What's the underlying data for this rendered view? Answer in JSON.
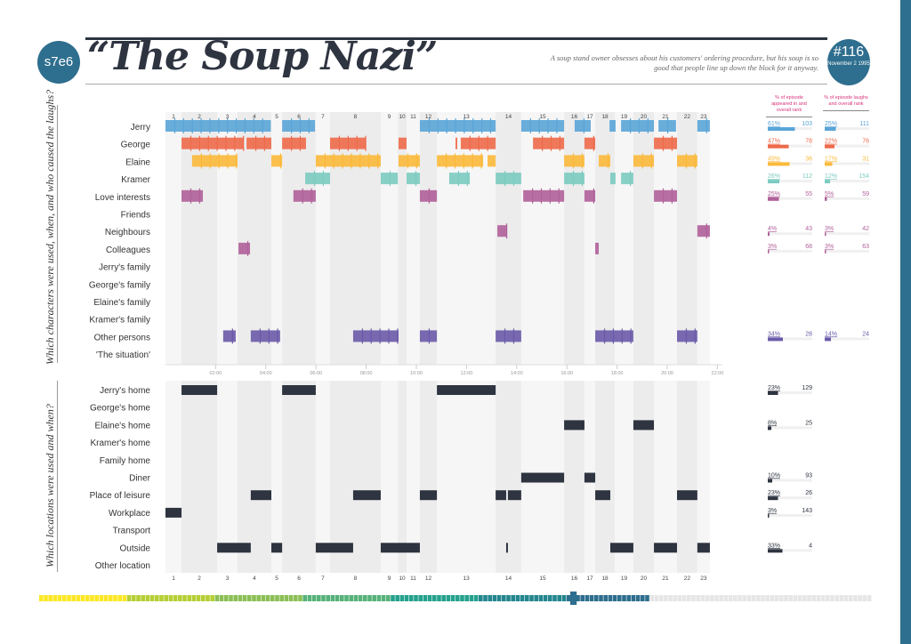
{
  "header": {
    "episode_code": "s7e6",
    "title": "“The Soup Nazi”",
    "description": "A soup stand owner obsesses about his customers' ordering procedure, but his soup is so good that people line up down the block for it anyway.",
    "episode_number": "#116",
    "air_date": "November 2 1995"
  },
  "labels": {
    "characters_question": "Which characters were used, when, and who caused the laughs?",
    "locations_question": "Which locations were used and when?",
    "col_appeared": "% of episode appeared in and overall rank",
    "col_laughs": "% of episode laughs and overall rank"
  },
  "colors": {
    "accent": "#2e6e8e",
    "Jerry": "#5aa5d8",
    "George": "#ee6a4a",
    "Elaine": "#fbb93a",
    "Kramer": "#7ccbc1",
    "secondary": "#b0609a",
    "other": "#6a5aa8",
    "location": "#2e3440",
    "stat_header": "#d6337a"
  },
  "chart_data": [
    {
      "type": "timeline",
      "xlabel": "",
      "unit": "minutes",
      "xlim": [
        0,
        22
      ],
      "time_ticks": [
        "02:00",
        "04:00",
        "06:00",
        "08:00",
        "10:00",
        "12:00",
        "14:00",
        "16:00",
        "18:00",
        "20:00",
        "22:00"
      ],
      "scenes": {
        "labels": [
          "1",
          "2",
          "3",
          "4",
          "5",
          "6",
          "7",
          "8",
          "9",
          "10",
          "11",
          "12",
          "13",
          "14",
          "15",
          "16",
          "17",
          "18",
          "19",
          "20",
          "21",
          "22",
          "23"
        ],
        "starts": [
          0,
          0.64,
          2.06,
          2.87,
          4.22,
          4.65,
          5.99,
          6.56,
          8.58,
          9.26,
          9.61,
          10.14,
          10.82,
          13.16,
          14.18,
          15.89,
          16.7,
          17.13,
          17.91,
          18.65,
          19.47,
          20.39,
          21.2
        ],
        "end": 21.7
      },
      "rows": [
        {
          "name": "Jerry",
          "color": "#5aa5d8",
          "segments": [
            [
              0,
              4.2
            ],
            [
              4.65,
              5.96
            ],
            [
              10.14,
              13.16
            ],
            [
              14.18,
              15.89
            ],
            [
              16.31,
              16.95
            ],
            [
              17.7,
              17.94
            ],
            [
              18.16,
              19.47
            ],
            [
              19.65,
              20.35
            ],
            [
              21.2,
              21.7
            ]
          ],
          "appeared": {
            "pct": "61%",
            "value": 61,
            "rank": "103"
          },
          "laughs": {
            "pct": "25%",
            "value": 25,
            "rank": "111"
          }
        },
        {
          "name": "George",
          "color": "#ee6a4a",
          "segments": [
            [
              0.64,
              3.12
            ],
            [
              3.23,
              4.22
            ],
            [
              4.65,
              5.6
            ],
            [
              6.56,
              7.98
            ],
            [
              9.29,
              9.61
            ],
            [
              11.56,
              11.63
            ],
            [
              11.77,
              13.16
            ],
            [
              14.65,
              15.89
            ],
            [
              16.7,
              17.13
            ],
            [
              19.47,
              20.39
            ]
          ],
          "appeared": {
            "pct": "47%",
            "value": 47,
            "rank": "78"
          },
          "laughs": {
            "pct": "22%",
            "value": 22,
            "rank": "76"
          }
        },
        {
          "name": "Elaine",
          "color": "#fbb93a",
          "segments": [
            [
              1.06,
              2.87
            ],
            [
              4.22,
              4.65
            ],
            [
              5.99,
              8.58
            ],
            [
              9.29,
              10.14
            ],
            [
              10.82,
              12.66
            ],
            [
              12.84,
              13.16
            ],
            [
              15.89,
              16.7
            ],
            [
              17.27,
              17.73
            ],
            [
              18.65,
              19.47
            ],
            [
              20.39,
              21.2
            ]
          ],
          "appeared": {
            "pct": "49%",
            "value": 49,
            "rank": "36"
          },
          "laughs": {
            "pct": "17%",
            "value": 17,
            "rank": "31"
          }
        },
        {
          "name": "Kramer",
          "color": "#7ccbc1",
          "segments": [
            [
              5.57,
              6.56
            ],
            [
              8.58,
              9.26
            ],
            [
              9.61,
              10.14
            ],
            [
              11.31,
              12.13
            ],
            [
              13.16,
              14.18
            ],
            [
              15.89,
              16.7
            ],
            [
              17.73,
              17.94
            ],
            [
              18.16,
              18.65
            ]
          ],
          "appeared": {
            "pct": "26%",
            "value": 26,
            "rank": "112"
          },
          "laughs": {
            "pct": "12%",
            "value": 12,
            "rank": "154"
          }
        },
        {
          "name": "Love interests",
          "color": "#b0609a",
          "segments": [
            [
              0.64,
              1.49
            ],
            [
              5.1,
              5.99
            ],
            [
              10.14,
              10.82
            ],
            [
              14.26,
              15.89
            ],
            [
              16.7,
              17.13
            ],
            [
              19.47,
              20.39
            ]
          ],
          "appeared": {
            "pct": "25%",
            "value": 25,
            "rank": "55"
          },
          "laughs": {
            "pct": "5%",
            "value": 5,
            "rank": "59"
          }
        },
        {
          "name": "Friends",
          "color": "#b0609a",
          "segments": []
        },
        {
          "name": "Neighbours",
          "color": "#b0609a",
          "segments": [
            [
              13.23,
              13.62
            ],
            [
              21.2,
              21.7
            ]
          ],
          "appeared": {
            "pct": "4%",
            "value": 4,
            "rank": "43"
          },
          "laughs": {
            "pct": "3%",
            "value": 3,
            "rank": "42"
          }
        },
        {
          "name": "Colleagues",
          "color": "#b0609a",
          "segments": [
            [
              2.91,
              3.37
            ],
            [
              17.13,
              17.27
            ]
          ],
          "appeared": {
            "pct": "3%",
            "value": 3,
            "rank": "68"
          },
          "laughs": {
            "pct": "3%",
            "value": 3,
            "rank": "63"
          }
        },
        {
          "name": "Jerry's family",
          "color": "#b0609a",
          "segments": []
        },
        {
          "name": "George's family",
          "color": "#b0609a",
          "segments": []
        },
        {
          "name": "Elaine's family",
          "color": "#b0609a",
          "segments": []
        },
        {
          "name": "Kramer's family",
          "color": "#b0609a",
          "segments": []
        },
        {
          "name": "Other persons",
          "color": "#6a5aa8",
          "segments": [
            [
              2.3,
              2.8
            ],
            [
              3.4,
              4.57
            ],
            [
              7.48,
              9.29
            ],
            [
              10.14,
              10.82
            ],
            [
              13.16,
              14.18
            ],
            [
              17.13,
              18.65
            ],
            [
              20.39,
              21.2
            ]
          ],
          "appeared": {
            "pct": "34%",
            "value": 34,
            "rank": "28"
          },
          "laughs": {
            "pct": "14%",
            "value": 14,
            "rank": "24"
          }
        },
        {
          "name": "'The situation'",
          "color": "#6a5aa8",
          "segments": []
        }
      ]
    },
    {
      "type": "timeline",
      "unit": "minutes",
      "rows": [
        {
          "name": "Jerry's home",
          "segments": [
            [
              0.64,
              2.06
            ],
            [
              4.65,
              5.99
            ],
            [
              10.82,
              13.16
            ]
          ],
          "appeared": {
            "pct": "23%",
            "value": 23,
            "rank": "129"
          }
        },
        {
          "name": "George's home",
          "segments": []
        },
        {
          "name": "Elaine's home",
          "segments": [
            [
              15.89,
              16.7
            ],
            [
              18.65,
              19.47
            ]
          ],
          "appeared": {
            "pct": "8%",
            "value": 8,
            "rank": "25"
          }
        },
        {
          "name": "Kramer's home",
          "segments": []
        },
        {
          "name": "Family home",
          "segments": []
        },
        {
          "name": "Diner",
          "segments": [
            [
              14.18,
              15.89
            ],
            [
              16.7,
              17.13
            ]
          ],
          "appeared": {
            "pct": "10%",
            "value": 10,
            "rank": "93"
          }
        },
        {
          "name": "Place of leisure",
          "segments": [
            [
              3.4,
              4.22
            ],
            [
              7.48,
              8.58
            ],
            [
              10.14,
              10.82
            ],
            [
              13.16,
              13.58
            ],
            [
              13.65,
              14.18
            ],
            [
              17.13,
              17.73
            ],
            [
              20.39,
              21.2
            ]
          ],
          "appeared": {
            "pct": "23%",
            "value": 23,
            "rank": "26"
          }
        },
        {
          "name": "Workplace",
          "segments": [
            [
              0,
              0.64
            ]
          ],
          "appeared": {
            "pct": "3%",
            "value": 3,
            "rank": "143"
          }
        },
        {
          "name": "Transport",
          "segments": []
        },
        {
          "name": "Outside",
          "segments": [
            [
              2.06,
              3.4
            ],
            [
              4.22,
              4.65
            ],
            [
              5.99,
              7.48
            ],
            [
              8.58,
              10.14
            ],
            [
              13.58,
              13.65
            ],
            [
              17.73,
              18.65
            ],
            [
              19.47,
              20.39
            ],
            [
              21.2,
              21.7
            ]
          ],
          "appeared": {
            "pct": "33%",
            "value": 33,
            "rank": "4"
          }
        },
        {
          "name": "Other location",
          "segments": []
        }
      ]
    }
  ],
  "series_progress": {
    "current_episode": 116,
    "total_episodes": 180
  }
}
